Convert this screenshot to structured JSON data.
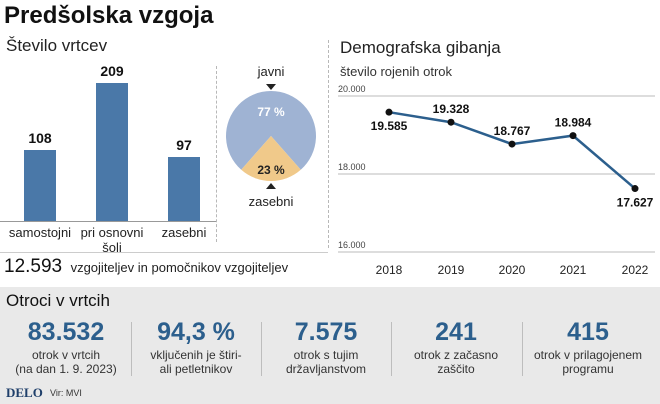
{
  "title": "Predšolska vzgoja",
  "left": {
    "subtitle": "Število vrtcev",
    "bars": [
      {
        "label": "samostojni",
        "value": 108
      },
      {
        "label": "pri osnovni\nšoli",
        "value": 209
      },
      {
        "label": "zasebni",
        "value": 97
      }
    ],
    "pie": {
      "slices": [
        {
          "label": "javni",
          "value": 77,
          "value_label": "77 %",
          "color": "#9fb3d3"
        },
        {
          "label": "zasebni",
          "value": 23,
          "value_label": "23 %",
          "color": "#f0c98a"
        }
      ]
    },
    "staff_number": "12.593",
    "staff_text": "vzgojiteljev in pomočnikov vzgojiteljev"
  },
  "right": {
    "subtitle": "Demografska gibanja",
    "chart_label": "število rojenih otrok"
  },
  "chart_data": {
    "type": "line",
    "title": "Demografska gibanja",
    "ylabel": "število rojenih otrok",
    "x": [
      "2018",
      "2019",
      "2020",
      "2021",
      "2022"
    ],
    "values": [
      19585,
      19328,
      18767,
      18984,
      17627
    ],
    "value_labels": [
      "19.585",
      "19.328",
      "18.767",
      "18.984",
      "17.627"
    ],
    "yticks": [
      16000,
      18000,
      20000
    ],
    "ytick_labels": [
      "16.000",
      "18.000",
      "20.000"
    ],
    "ylim": [
      16000,
      20000
    ],
    "color": "#2c5f8d"
  },
  "bottom": {
    "heading": "Otroci v vrtcih",
    "stats": [
      {
        "value": "83.532",
        "desc": "otrok v vrtcih\n(na dan 1. 9. 2023)"
      },
      {
        "value": "94,3 %",
        "desc": "vključenih je štiri-\nali petletnikov"
      },
      {
        "value": "7.575",
        "desc": "otrok s tujim\ndržavljanstvom"
      },
      {
        "value": "241",
        "desc": "otrok z začasno\nzaščito"
      },
      {
        "value": "415",
        "desc": "otrok v prilagojenem\nprogramu"
      }
    ]
  },
  "footer": {
    "brand": "DELO",
    "source": "Vir: MVI"
  }
}
